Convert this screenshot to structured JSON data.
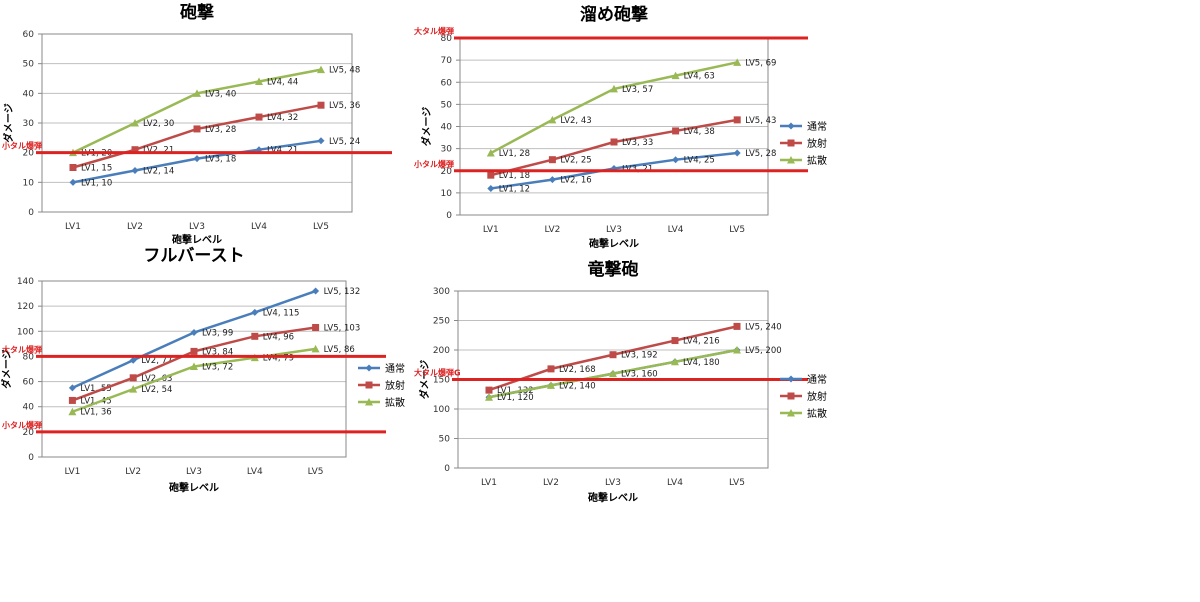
{
  "colors": {
    "normal": "#4a7ebb",
    "radiate": "#be4b48",
    "spread": "#98b954",
    "ref_line": "#dd2222",
    "grid": "#bfbfbf",
    "axis": "#888888"
  },
  "chart_data": [
    {
      "type": "line",
      "title": "砲撃",
      "xlabel": "砲撃レベル",
      "ylabel": "ダメージ",
      "categories": [
        "LV1",
        "LV2",
        "LV3",
        "LV4",
        "LV5"
      ],
      "ylim": [
        0,
        60
      ],
      "yticks": [
        0,
        10,
        20,
        30,
        40,
        50,
        60
      ],
      "legend": "none",
      "series": [
        {
          "name": "通常",
          "color": "#4a7ebb",
          "marker": "diamond",
          "values": [
            10,
            14,
            18,
            21,
            24
          ],
          "labels": [
            "LV1, 10",
            "LV2, 14",
            "LV3, 18",
            "LV4, 21",
            "LV5, 24"
          ]
        },
        {
          "name": "放射",
          "color": "#be4b48",
          "marker": "square",
          "values": [
            15,
            21,
            28,
            32,
            36
          ],
          "labels": [
            "LV1, 15",
            "LV2, 21",
            "LV3, 28",
            "LV4, 32",
            "LV5, 36"
          ]
        },
        {
          "name": "拡散",
          "color": "#98b954",
          "marker": "triangle",
          "values": [
            20,
            30,
            40,
            44,
            48
          ],
          "labels": [
            "LV1, 20",
            "LV2, 30",
            "LV3, 40",
            "LV4, 44",
            "LV5, 48"
          ]
        }
      ],
      "ref_lines": [
        {
          "label": "小タル爆弾",
          "value": 20
        }
      ]
    },
    {
      "type": "line",
      "title": "溜め砲撃",
      "xlabel": "砲撃レベル",
      "ylabel": "ダメージ",
      "categories": [
        "LV1",
        "LV2",
        "LV3",
        "LV4",
        "LV5"
      ],
      "ylim": [
        0,
        80
      ],
      "yticks": [
        0,
        10,
        20,
        30,
        40,
        50,
        60,
        70,
        80
      ],
      "legend": "right",
      "series": [
        {
          "name": "通常",
          "color": "#4a7ebb",
          "marker": "diamond",
          "values": [
            12,
            16,
            21,
            25,
            28
          ],
          "labels": [
            "LV1, 12",
            "LV2, 16",
            "LV3, 21",
            "LV4, 25",
            "LV5, 28"
          ]
        },
        {
          "name": "放射",
          "color": "#be4b48",
          "marker": "square",
          "values": [
            18,
            25,
            33,
            38,
            43
          ],
          "labels": [
            "LV1, 18",
            "LV2, 25",
            "LV3, 33",
            "LV4, 38",
            "LV5, 43"
          ]
        },
        {
          "name": "拡散",
          "color": "#98b954",
          "marker": "triangle",
          "values": [
            28,
            43,
            57,
            63,
            69
          ],
          "labels": [
            "LV1, 28",
            "LV2, 43",
            "LV3, 57",
            "LV4, 63",
            "LV5, 69"
          ]
        }
      ],
      "ref_lines": [
        {
          "label": "大タル爆弾",
          "value": 80
        },
        {
          "label": "小タル爆弾",
          "value": 20
        }
      ]
    },
    {
      "type": "line",
      "title": "フルバースト",
      "xlabel": "砲撃レベル",
      "ylabel": "ダメージ",
      "categories": [
        "LV1",
        "LV2",
        "LV3",
        "LV4",
        "LV5"
      ],
      "ylim": [
        0,
        140
      ],
      "yticks": [
        0,
        20,
        40,
        60,
        80,
        100,
        120,
        140
      ],
      "legend": "right",
      "series": [
        {
          "name": "通常",
          "color": "#4a7ebb",
          "marker": "diamond",
          "values": [
            55,
            77,
            99,
            115,
            132
          ],
          "labels": [
            "LV1, 55",
            "LV2, 77",
            "LV3, 99",
            "LV4, 115",
            "LV5, 132"
          ]
        },
        {
          "name": "放射",
          "color": "#be4b48",
          "marker": "square",
          "values": [
            45,
            63,
            84,
            96,
            103
          ],
          "labels": [
            "LV1, 45",
            "LV2, 63",
            "LV3, 84",
            "LV4, 96",
            "LV5, 103"
          ]
        },
        {
          "name": "拡散",
          "color": "#98b954",
          "marker": "triangle",
          "values": [
            36,
            54,
            72,
            79,
            86
          ],
          "labels": [
            "LV1, 36",
            "LV2, 54",
            "LV3, 72",
            "LV4, 79",
            "LV5, 86"
          ]
        }
      ],
      "ref_lines": [
        {
          "label": "大タル爆弾",
          "value": 80
        },
        {
          "label": "小タル爆弾",
          "value": 20
        }
      ]
    },
    {
      "type": "line",
      "title": "竜撃砲",
      "xlabel": "砲撃レベル",
      "ylabel": "ダメージ",
      "categories": [
        "LV1",
        "LV2",
        "LV3",
        "LV4",
        "LV5"
      ],
      "ylim": [
        0,
        300
      ],
      "yticks": [
        0,
        50,
        100,
        150,
        200,
        250,
        300
      ],
      "legend": "right",
      "series": [
        {
          "name": "通常",
          "color": "#4a7ebb",
          "marker": "diamond",
          "values": [
            120,
            140,
            160,
            180,
            200
          ],
          "labels": [
            "",
            "",
            "",
            "",
            ""
          ]
        },
        {
          "name": "放射",
          "color": "#be4b48",
          "marker": "square",
          "values": [
            132,
            168,
            192,
            216,
            240
          ],
          "labels": [
            "LV1, 132",
            "LV2, 168",
            "LV3, 192",
            "LV4, 216",
            "LV5, 240"
          ]
        },
        {
          "name": "拡散",
          "color": "#98b954",
          "marker": "triangle",
          "values": [
            120,
            140,
            160,
            180,
            200
          ],
          "labels": [
            "LV1, 120",
            "LV2, 140",
            "LV3, 160",
            "LV4, 180",
            "LV5, 200"
          ]
        }
      ],
      "ref_lines": [
        {
          "label": "大タル爆弾G",
          "value": 150
        }
      ]
    }
  ]
}
